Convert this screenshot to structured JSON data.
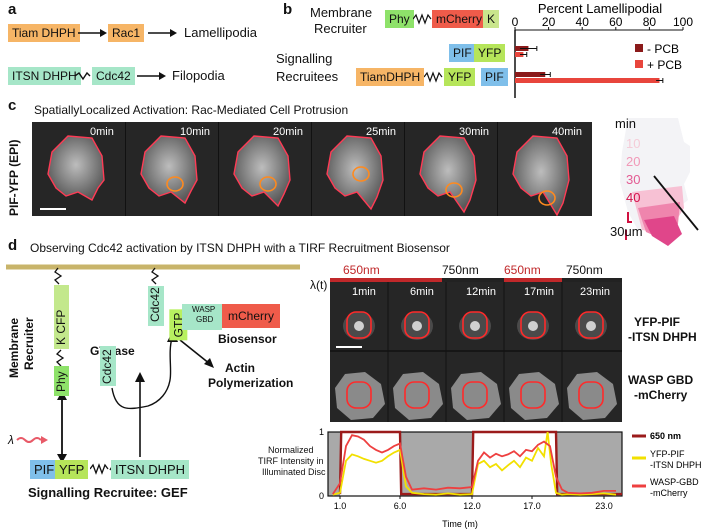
{
  "panels": {
    "a": {
      "label": "a",
      "row1": {
        "box": "Tiam DHPH",
        "target": "Rac1",
        "outcome": "Lamellipodia"
      },
      "row2": {
        "box": "ITSN DHPH",
        "target": "Cdc42",
        "outcome": "Filopodia"
      }
    },
    "b": {
      "label": "b",
      "membrane_label": [
        "Membrane",
        "Recruiter"
      ],
      "membrane_construct": {
        "phy": "Phy",
        "mcherry": "mCherry",
        "k": "K"
      },
      "signalling_label": [
        "Signalling",
        "Recruitees"
      ],
      "construct1": {
        "pif": "PIF",
        "yfp": "YFP"
      },
      "construct2": {
        "tiam": "TiamDHPH",
        "yfp": "YFP",
        "pif": "PIF"
      }
    },
    "c": {
      "label": "c",
      "title": "SpatiallyLocalized Activation:  Rac-Mediated Cell Protrusion",
      "ylabel": "PIF-YFP (EPI)",
      "frames": [
        "0min",
        "10min",
        "20min",
        "25min",
        "30min",
        "40min"
      ],
      "time_legend": [
        "min",
        "10",
        "20",
        "30",
        "40"
      ],
      "scale": "30um"
    },
    "d": {
      "label": "d",
      "title": "Observing  Cdc42 activation by ITSN DHPH with a TIRF Recruitment Biosensor",
      "membrane_recruiter": [
        "Membrane",
        "Recruiter"
      ],
      "kcfp": "K CFP",
      "phy": "Phy",
      "gtpase": "GTPase",
      "cdc42": "Cdc42",
      "gtp": "GTP",
      "wasp": [
        "WASP",
        "GBD"
      ],
      "mcherry": "mCherry",
      "biosensor": "Biosensor",
      "actin": [
        "Actin",
        "Polymerization"
      ],
      "lambda": "λ",
      "recruitee": {
        "pif": "PIF",
        "yfp": "YFP",
        "itsn": "ITSN DHPH"
      },
      "recruitee_label": "Signalling Recruitee: GEF",
      "lambda_t": "λ(t)",
      "wavelengths": [
        "650nm",
        "750nm",
        "650nm",
        "750nm"
      ],
      "times": [
        "1min",
        "6min",
        "12min",
        "17min",
        "23min"
      ],
      "row1_label": [
        "YFP-PIF",
        "-ITSN DHPH"
      ],
      "row2_label": [
        "WASP GBD",
        "-mCherry"
      ],
      "plot_ylabel": [
        "Normalized",
        "TIRF Intensity in",
        "Illuminated Disc"
      ]
    }
  },
  "chart_data": [
    {
      "type": "bar",
      "title": "Percent Lamellipodial",
      "categories": [
        "PIF YFP",
        "TiamDHPH YFP PIF"
      ],
      "series": [
        {
          "name": "- PCB",
          "color": "#8b1a1a",
          "values": [
            8,
            18
          ]
        },
        {
          "name": "+ PCB",
          "color": "#e8453c",
          "values": [
            5,
            86
          ]
        }
      ],
      "errors": [
        [
          5,
          2
        ],
        [
          3,
          2
        ]
      ],
      "xticks": [
        "0",
        "20",
        "40",
        "60",
        "80",
        "100"
      ],
      "xlim": [
        0,
        100
      ],
      "orientation": "horizontal",
      "legend": "right"
    },
    {
      "type": "line",
      "xlabel": "Time (m)",
      "xticks": [
        "1.0",
        "6.0",
        "12.0",
        "17.0",
        "23.0"
      ],
      "xtick_values": [
        1,
        6,
        12,
        17,
        23
      ],
      "yticks": [
        "0",
        "1"
      ],
      "xlim": [
        0,
        24.5
      ],
      "ylim": [
        0,
        1
      ],
      "shaded_intervals": [
        [
          1,
          6
        ],
        [
          12,
          19
        ]
      ],
      "series": [
        {
          "name": "650 nm",
          "color": "#9b1b1b",
          "x": [
            1,
            1.1,
            6.0,
            6.1,
            12.0,
            12.1,
            19.0,
            19.1,
            24.5
          ],
          "y": [
            0.03,
            1.0,
            1.0,
            0.03,
            0.03,
            1.0,
            1.0,
            0.03,
            0.03
          ]
        },
        {
          "name": "YFP-PIF -ITSN DHPH",
          "color": "#f2e000",
          "x": [
            0.4,
            1.0,
            1.5,
            2.0,
            2.5,
            3.0,
            3.5,
            4.0,
            4.5,
            5.0,
            5.5,
            6.0,
            6.5,
            7.0,
            8.0,
            9.0,
            10.0,
            11.0,
            12.0,
            12.5,
            13.0,
            13.5,
            14.0,
            14.5,
            15.0,
            15.5,
            16.0,
            16.5,
            17.0,
            17.5,
            18.0,
            18.3,
            18.6,
            19.0,
            19.5,
            20.0,
            21.0,
            22.0,
            23.0,
            24.0
          ],
          "y": [
            0.02,
            0.05,
            0.55,
            0.65,
            0.62,
            0.58,
            0.55,
            0.52,
            0.55,
            0.62,
            0.68,
            0.72,
            0.15,
            0.05,
            0.03,
            0.02,
            0.04,
            0.02,
            0.03,
            0.5,
            0.55,
            0.45,
            0.5,
            0.4,
            0.48,
            0.55,
            0.45,
            0.6,
            0.55,
            0.75,
            0.62,
            1.0,
            0.5,
            0.05,
            0.02,
            0.03,
            0.02,
            0.03,
            0.04,
            0.02
          ]
        },
        {
          "name": "WASP-GBD -mCherry",
          "color": "#ee4040",
          "x": [
            0.4,
            1.0,
            1.5,
            2.0,
            2.5,
            3.0,
            3.5,
            4.0,
            4.5,
            5.0,
            5.5,
            6.0,
            6.5,
            7.0,
            8.0,
            9.0,
            10.0,
            11.0,
            12.0,
            12.5,
            13.0,
            13.5,
            14.0,
            14.5,
            15.0,
            15.5,
            16.0,
            16.5,
            17.0,
            17.5,
            18.0,
            18.5,
            19.0,
            19.5,
            20.0,
            21.0,
            22.0,
            23.0,
            24.0
          ],
          "y": [
            0.03,
            0.2,
            0.78,
            0.95,
            0.93,
            0.88,
            0.78,
            0.72,
            0.68,
            0.72,
            0.78,
            0.82,
            0.3,
            0.1,
            0.12,
            0.1,
            0.13,
            0.12,
            0.14,
            0.55,
            0.68,
            0.6,
            0.66,
            0.62,
            0.65,
            0.7,
            0.62,
            0.72,
            0.7,
            0.8,
            0.85,
            0.78,
            0.3,
            0.1,
            0.05,
            0.04,
            0.05,
            0.08,
            0.08
          ]
        }
      ]
    }
  ]
}
